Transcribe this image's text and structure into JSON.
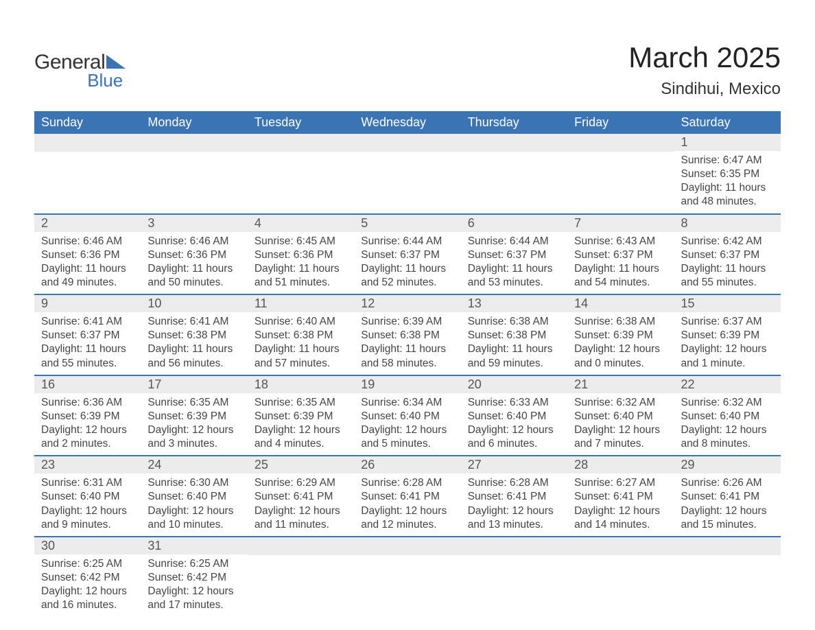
{
  "brand": {
    "word1": "General",
    "word2": "Blue"
  },
  "title": "March 2025",
  "location": "Sindihui, Mexico",
  "columns": [
    "Sunday",
    "Monday",
    "Tuesday",
    "Wednesday",
    "Thursday",
    "Friday",
    "Saturday"
  ],
  "colors": {
    "header_bg": "#3a74b4",
    "header_text": "#ffffff",
    "daynum_bg": "#ececec",
    "row_border": "#3a74b4",
    "body_text": "#444444",
    "logo_blue": "#3a74b4"
  },
  "fonts": {
    "title_pt": 42,
    "location_pt": 24,
    "header_pt": 18,
    "daynum_pt": 18,
    "body_pt": 15.5
  },
  "labels": {
    "sunrise": "Sunrise:",
    "sunset": "Sunset:",
    "daylight": "Daylight:"
  },
  "weeks": [
    [
      null,
      null,
      null,
      null,
      null,
      null,
      {
        "n": 1,
        "sunrise": "6:47 AM",
        "sunset": "6:35 PM",
        "daylight": "11 hours and 48 minutes."
      }
    ],
    [
      {
        "n": 2,
        "sunrise": "6:46 AM",
        "sunset": "6:36 PM",
        "daylight": "11 hours and 49 minutes."
      },
      {
        "n": 3,
        "sunrise": "6:46 AM",
        "sunset": "6:36 PM",
        "daylight": "11 hours and 50 minutes."
      },
      {
        "n": 4,
        "sunrise": "6:45 AM",
        "sunset": "6:36 PM",
        "daylight": "11 hours and 51 minutes."
      },
      {
        "n": 5,
        "sunrise": "6:44 AM",
        "sunset": "6:37 PM",
        "daylight": "11 hours and 52 minutes."
      },
      {
        "n": 6,
        "sunrise": "6:44 AM",
        "sunset": "6:37 PM",
        "daylight": "11 hours and 53 minutes."
      },
      {
        "n": 7,
        "sunrise": "6:43 AM",
        "sunset": "6:37 PM",
        "daylight": "11 hours and 54 minutes."
      },
      {
        "n": 8,
        "sunrise": "6:42 AM",
        "sunset": "6:37 PM",
        "daylight": "11 hours and 55 minutes."
      }
    ],
    [
      {
        "n": 9,
        "sunrise": "6:41 AM",
        "sunset": "6:37 PM",
        "daylight": "11 hours and 55 minutes."
      },
      {
        "n": 10,
        "sunrise": "6:41 AM",
        "sunset": "6:38 PM",
        "daylight": "11 hours and 56 minutes."
      },
      {
        "n": 11,
        "sunrise": "6:40 AM",
        "sunset": "6:38 PM",
        "daylight": "11 hours and 57 minutes."
      },
      {
        "n": 12,
        "sunrise": "6:39 AM",
        "sunset": "6:38 PM",
        "daylight": "11 hours and 58 minutes."
      },
      {
        "n": 13,
        "sunrise": "6:38 AM",
        "sunset": "6:38 PM",
        "daylight": "11 hours and 59 minutes."
      },
      {
        "n": 14,
        "sunrise": "6:38 AM",
        "sunset": "6:39 PM",
        "daylight": "12 hours and 0 minutes."
      },
      {
        "n": 15,
        "sunrise": "6:37 AM",
        "sunset": "6:39 PM",
        "daylight": "12 hours and 1 minute."
      }
    ],
    [
      {
        "n": 16,
        "sunrise": "6:36 AM",
        "sunset": "6:39 PM",
        "daylight": "12 hours and 2 minutes."
      },
      {
        "n": 17,
        "sunrise": "6:35 AM",
        "sunset": "6:39 PM",
        "daylight": "12 hours and 3 minutes."
      },
      {
        "n": 18,
        "sunrise": "6:35 AM",
        "sunset": "6:39 PM",
        "daylight": "12 hours and 4 minutes."
      },
      {
        "n": 19,
        "sunrise": "6:34 AM",
        "sunset": "6:40 PM",
        "daylight": "12 hours and 5 minutes."
      },
      {
        "n": 20,
        "sunrise": "6:33 AM",
        "sunset": "6:40 PM",
        "daylight": "12 hours and 6 minutes."
      },
      {
        "n": 21,
        "sunrise": "6:32 AM",
        "sunset": "6:40 PM",
        "daylight": "12 hours and 7 minutes."
      },
      {
        "n": 22,
        "sunrise": "6:32 AM",
        "sunset": "6:40 PM",
        "daylight": "12 hours and 8 minutes."
      }
    ],
    [
      {
        "n": 23,
        "sunrise": "6:31 AM",
        "sunset": "6:40 PM",
        "daylight": "12 hours and 9 minutes."
      },
      {
        "n": 24,
        "sunrise": "6:30 AM",
        "sunset": "6:40 PM",
        "daylight": "12 hours and 10 minutes."
      },
      {
        "n": 25,
        "sunrise": "6:29 AM",
        "sunset": "6:41 PM",
        "daylight": "12 hours and 11 minutes."
      },
      {
        "n": 26,
        "sunrise": "6:28 AM",
        "sunset": "6:41 PM",
        "daylight": "12 hours and 12 minutes."
      },
      {
        "n": 27,
        "sunrise": "6:28 AM",
        "sunset": "6:41 PM",
        "daylight": "12 hours and 13 minutes."
      },
      {
        "n": 28,
        "sunrise": "6:27 AM",
        "sunset": "6:41 PM",
        "daylight": "12 hours and 14 minutes."
      },
      {
        "n": 29,
        "sunrise": "6:26 AM",
        "sunset": "6:41 PM",
        "daylight": "12 hours and 15 minutes."
      }
    ],
    [
      {
        "n": 30,
        "sunrise": "6:25 AM",
        "sunset": "6:42 PM",
        "daylight": "12 hours and 16 minutes."
      },
      {
        "n": 31,
        "sunrise": "6:25 AM",
        "sunset": "6:42 PM",
        "daylight": "12 hours and 17 minutes."
      },
      null,
      null,
      null,
      null,
      null
    ]
  ]
}
